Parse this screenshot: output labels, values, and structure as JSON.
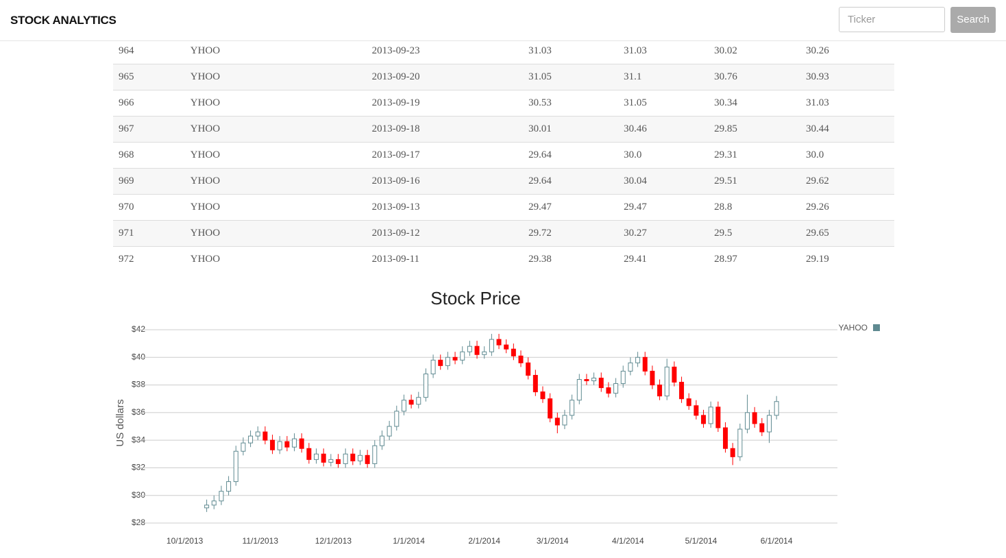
{
  "header": {
    "brand": "STOCK ANALYTICS",
    "search_placeholder": "Ticker",
    "search_button": "Search"
  },
  "table": {
    "rows": [
      [
        "964",
        "YHOO",
        "2013-09-23",
        "31.03",
        "31.03",
        "30.02",
        "30.26"
      ],
      [
        "965",
        "YHOO",
        "2013-09-20",
        "31.05",
        "31.1",
        "30.76",
        "30.93"
      ],
      [
        "966",
        "YHOO",
        "2013-09-19",
        "30.53",
        "31.05",
        "30.34",
        "31.03"
      ],
      [
        "967",
        "YHOO",
        "2013-09-18",
        "30.01",
        "30.46",
        "29.85",
        "30.44"
      ],
      [
        "968",
        "YHOO",
        "2013-09-17",
        "29.64",
        "30.0",
        "29.31",
        "30.0"
      ],
      [
        "969",
        "YHOO",
        "2013-09-16",
        "29.64",
        "30.04",
        "29.51",
        "29.62"
      ],
      [
        "970",
        "YHOO",
        "2013-09-13",
        "29.47",
        "29.47",
        "28.8",
        "29.26"
      ],
      [
        "971",
        "YHOO",
        "2013-09-12",
        "29.72",
        "30.27",
        "29.5",
        "29.65"
      ],
      [
        "972",
        "YHOO",
        "2013-09-11",
        "29.38",
        "29.41",
        "28.97",
        "29.19"
      ]
    ]
  },
  "chart_data": {
    "type": "candlestick",
    "title": "Stock Price",
    "y_label": "US dollars",
    "xlim": [
      "2013-09-10",
      "2014-06-26"
    ],
    "xticks": [
      {
        "value": "2013-10-01",
        "label": "10/1/2013"
      },
      {
        "value": "2013-11-01",
        "label": "11/1/2013"
      },
      {
        "value": "2013-12-01",
        "label": "12/1/2013"
      },
      {
        "value": "2014-01-01",
        "label": "1/1/2014"
      },
      {
        "value": "2014-02-01",
        "label": "2/1/2014"
      },
      {
        "value": "2014-03-01",
        "label": "3/1/2014"
      },
      {
        "value": "2014-04-01",
        "label": "4/1/2014"
      },
      {
        "value": "2014-05-01",
        "label": "5/1/2014"
      },
      {
        "value": "2014-06-01",
        "label": "6/1/2014"
      }
    ],
    "ylim": [
      28,
      42
    ],
    "yticks": [
      {
        "value": 28,
        "label": "$28"
      },
      {
        "value": 30,
        "label": "$30"
      },
      {
        "value": 32,
        "label": "$32"
      },
      {
        "value": 34,
        "label": "$34"
      },
      {
        "value": 36,
        "label": "$36"
      },
      {
        "value": 38,
        "label": "$38"
      },
      {
        "value": 40,
        "label": "$40"
      },
      {
        "value": 42,
        "label": "$42"
      }
    ],
    "grid": true,
    "legend": "top-right",
    "x": [
      "2013-10-10",
      "2013-10-13",
      "2013-10-16",
      "2013-10-19",
      "2013-10-22",
      "2013-10-25",
      "2013-10-28",
      "2013-10-31",
      "2013-11-03",
      "2013-11-06",
      "2013-11-09",
      "2013-11-12",
      "2013-11-15",
      "2013-11-18",
      "2013-11-21",
      "2013-11-24",
      "2013-11-27",
      "2013-11-30",
      "2013-12-03",
      "2013-12-06",
      "2013-12-09",
      "2013-12-12",
      "2013-12-15",
      "2013-12-18",
      "2013-12-21",
      "2013-12-24",
      "2013-12-27",
      "2013-12-30",
      "2014-01-02",
      "2014-01-05",
      "2014-01-08",
      "2014-01-11",
      "2014-01-14",
      "2014-01-17",
      "2014-01-20",
      "2014-01-23",
      "2014-01-26",
      "2014-01-29",
      "2014-02-01",
      "2014-02-04",
      "2014-02-07",
      "2014-02-10",
      "2014-02-13",
      "2014-02-16",
      "2014-02-19",
      "2014-02-22",
      "2014-02-25",
      "2014-02-28",
      "2014-03-03",
      "2014-03-06",
      "2014-03-09",
      "2014-03-12",
      "2014-03-15",
      "2014-03-18",
      "2014-03-21",
      "2014-03-24",
      "2014-03-27",
      "2014-03-30",
      "2014-04-02",
      "2014-04-05",
      "2014-04-08",
      "2014-04-11",
      "2014-04-14",
      "2014-04-17",
      "2014-04-20",
      "2014-04-23",
      "2014-04-26",
      "2014-04-29",
      "2014-05-02",
      "2014-05-05",
      "2014-05-08",
      "2014-05-11",
      "2014-05-14",
      "2014-05-17",
      "2014-05-20",
      "2014-05-23",
      "2014-05-26",
      "2014-05-29",
      "2014-06-01"
    ],
    "series": [
      {
        "name": "YAHOO",
        "color": "#5f8a91",
        "down_color": "#ff0000",
        "open": [
          29.1,
          29.3,
          29.6,
          30.3,
          31.0,
          33.2,
          33.8,
          34.3,
          34.6,
          34.0,
          33.3,
          33.9,
          33.5,
          34.1,
          33.4,
          32.6,
          33.0,
          32.4,
          32.6,
          32.3,
          33.0,
          32.5,
          32.9,
          32.3,
          33.6,
          34.3,
          35.0,
          36.1,
          36.9,
          36.6,
          37.1,
          38.8,
          39.8,
          39.4,
          40.0,
          39.8,
          40.4,
          40.8,
          40.2,
          40.4,
          41.3,
          40.9,
          40.6,
          40.1,
          39.6,
          38.7,
          37.5,
          37.0,
          35.6,
          35.1,
          35.8,
          36.9,
          38.4,
          38.3,
          38.5,
          37.8,
          37.4,
          38.1,
          39.0,
          39.6,
          40.0,
          39.0,
          38.0,
          37.2,
          39.3,
          38.2,
          37.0,
          36.5,
          35.8,
          35.2,
          36.4,
          34.9,
          33.4,
          32.8,
          34.8,
          36.0,
          35.2,
          34.6,
          35.8
        ],
        "high": [
          29.7,
          30.0,
          30.7,
          31.4,
          33.6,
          34.2,
          34.7,
          35.0,
          35.0,
          34.4,
          34.3,
          34.3,
          34.5,
          34.5,
          33.8,
          33.4,
          33.4,
          33.0,
          33.0,
          33.4,
          33.4,
          33.3,
          33.3,
          34.0,
          34.7,
          35.4,
          36.5,
          37.3,
          37.3,
          37.5,
          39.2,
          40.2,
          40.2,
          40.4,
          40.4,
          40.8,
          41.2,
          41.2,
          40.8,
          41.7,
          41.7,
          41.3,
          41.0,
          40.5,
          40.0,
          39.1,
          37.9,
          37.4,
          36.0,
          36.2,
          37.3,
          38.8,
          38.8,
          38.9,
          38.9,
          38.2,
          38.5,
          39.4,
          40.0,
          40.4,
          40.4,
          39.4,
          38.4,
          39.9,
          39.7,
          38.6,
          37.4,
          36.9,
          36.2,
          36.8,
          36.8,
          35.3,
          33.8,
          35.2,
          37.3,
          36.4,
          35.6,
          36.2,
          37.2
        ],
        "low": [
          28.8,
          29.0,
          29.3,
          30.0,
          30.7,
          32.9,
          33.5,
          34.0,
          33.7,
          33.0,
          33.0,
          33.2,
          33.2,
          33.1,
          32.3,
          32.3,
          32.1,
          32.1,
          32.0,
          32.0,
          32.2,
          32.2,
          32.0,
          32.0,
          33.3,
          34.0,
          34.7,
          35.8,
          36.3,
          36.3,
          36.8,
          38.5,
          39.1,
          39.1,
          39.5,
          39.5,
          40.1,
          39.9,
          39.9,
          40.1,
          40.6,
          40.3,
          39.8,
          39.3,
          38.4,
          37.2,
          36.7,
          35.3,
          34.5,
          34.8,
          35.5,
          36.6,
          38.0,
          38.0,
          37.5,
          37.1,
          37.1,
          37.8,
          38.7,
          39.3,
          38.7,
          37.7,
          36.9,
          36.9,
          37.9,
          36.7,
          36.2,
          35.5,
          34.9,
          34.9,
          34.6,
          33.1,
          32.2,
          32.5,
          34.5,
          34.9,
          34.3,
          33.8,
          35.5
        ],
        "close": [
          29.3,
          29.6,
          30.3,
          31.0,
          33.2,
          33.8,
          34.3,
          34.6,
          34.0,
          33.3,
          33.9,
          33.5,
          34.1,
          33.4,
          32.6,
          33.0,
          32.4,
          32.6,
          32.3,
          33.0,
          32.5,
          32.9,
          32.3,
          33.6,
          34.3,
          35.0,
          36.1,
          36.9,
          36.6,
          37.1,
          38.8,
          39.8,
          39.4,
          40.0,
          39.8,
          40.4,
          40.8,
          40.2,
          40.4,
          41.3,
          40.9,
          40.6,
          40.1,
          39.6,
          38.7,
          37.5,
          37.0,
          35.6,
          35.1,
          35.8,
          36.9,
          38.4,
          38.3,
          38.5,
          37.8,
          37.4,
          38.1,
          39.0,
          39.6,
          40.0,
          39.0,
          38.0,
          37.2,
          39.3,
          38.2,
          37.0,
          36.5,
          35.8,
          35.2,
          36.4,
          34.9,
          33.4,
          32.8,
          34.8,
          36.0,
          35.2,
          34.6,
          35.8,
          36.8
        ]
      }
    ]
  }
}
